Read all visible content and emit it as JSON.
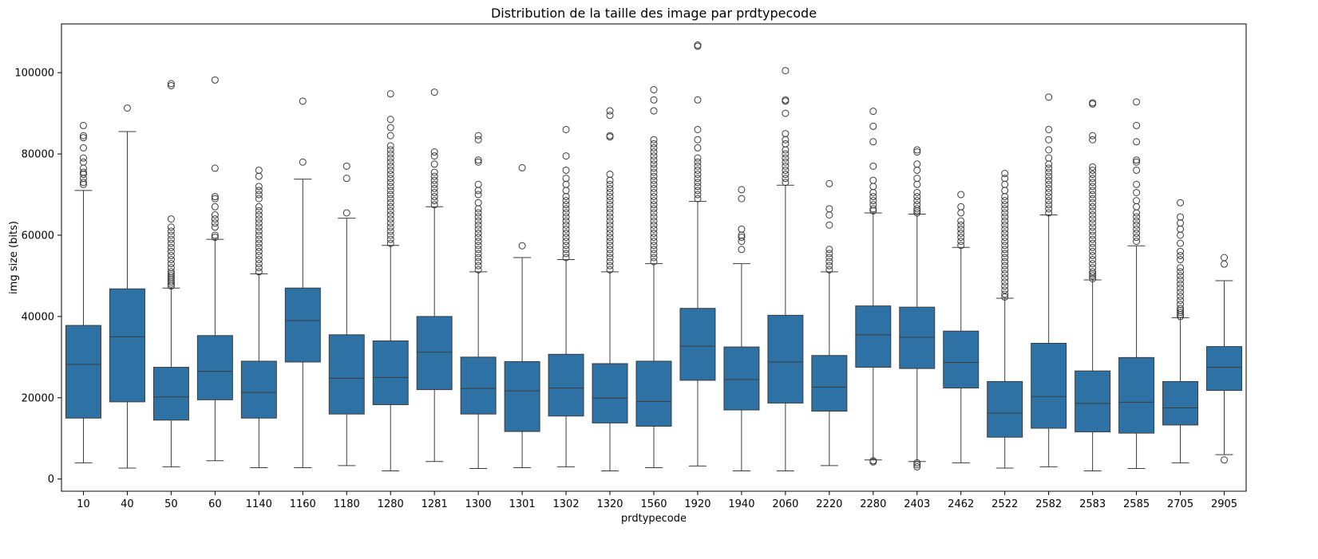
{
  "chart_data": {
    "type": "box",
    "title": "Distribution de la taille des image par prdtypecode",
    "xlabel": "prdtypecode",
    "ylabel": "img size (bits)",
    "ylim": [
      -3000,
      112000
    ],
    "yticks": [
      0,
      20000,
      40000,
      60000,
      80000,
      100000
    ],
    "ytick_labels": [
      "0",
      "20000",
      "40000",
      "60000",
      "80000",
      "100000"
    ],
    "grid": false,
    "box_color": "#2e72a5",
    "line_color": "#3b3b3b",
    "categories": [
      "10",
      "40",
      "50",
      "60",
      "1140",
      "1160",
      "1180",
      "1280",
      "1281",
      "1300",
      "1301",
      "1302",
      "1320",
      "1560",
      "1920",
      "1940",
      "2060",
      "2220",
      "2280",
      "2403",
      "2462",
      "2522",
      "2582",
      "2583",
      "2585",
      "2705",
      "2905"
    ],
    "boxes": [
      {
        "category": "10",
        "whislo": 4000,
        "q1": 15000,
        "median": 28200,
        "q3": 37800,
        "whishi": 71000,
        "fliers": [
          72500,
          73000,
          74000,
          75000,
          75500,
          76500,
          78000,
          79000,
          81500,
          84000,
          84500,
          87000
        ]
      },
      {
        "category": "40",
        "whislo": 2700,
        "q1": 19000,
        "median": 35000,
        "q3": 46800,
        "whishi": 85500,
        "fliers": [
          91300
        ]
      },
      {
        "category": "50",
        "whislo": 3000,
        "q1": 14500,
        "median": 20200,
        "q3": 27500,
        "whishi": 47000,
        "fliers": [
          47500,
          48000,
          48500,
          49000,
          49500,
          50000,
          50500,
          51000,
          52000,
          53000,
          54000,
          55000,
          56000,
          57000,
          58000,
          59000,
          60000,
          61000,
          62000,
          64000,
          96800,
          97300
        ]
      },
      {
        "category": "60",
        "whislo": 4500,
        "q1": 19500,
        "median": 26500,
        "q3": 35300,
        "whishi": 59000,
        "fliers": [
          59500,
          60000,
          62000,
          63000,
          64000,
          65000,
          67000,
          69000,
          69500,
          76500,
          98200
        ]
      },
      {
        "category": "1140",
        "whislo": 2800,
        "q1": 15000,
        "median": 21300,
        "q3": 29000,
        "whishi": 50500,
        "fliers": [
          51000,
          52000,
          53000,
          54000,
          55000,
          56000,
          57000,
          58000,
          59000,
          60000,
          61000,
          62000,
          63000,
          64000,
          65000,
          66000,
          67000,
          69000,
          70000,
          71000,
          72000,
          74500,
          76000
        ]
      },
      {
        "category": "1160",
        "whislo": 2800,
        "q1": 28800,
        "median": 39000,
        "q3": 47000,
        "whishi": 73800,
        "fliers": [
          78000,
          93000
        ]
      },
      {
        "category": "1180",
        "whislo": 3300,
        "q1": 16000,
        "median": 24800,
        "q3": 35500,
        "whishi": 64200,
        "fliers": [
          65500,
          74000,
          77000
        ]
      },
      {
        "category": "1280",
        "whislo": 2000,
        "q1": 18300,
        "median": 25000,
        "q3": 34000,
        "whishi": 57500,
        "fliers": [
          58000,
          59000,
          60000,
          61000,
          62000,
          63000,
          64000,
          65000,
          66000,
          67000,
          68000,
          69000,
          70000,
          71000,
          72000,
          73000,
          74000,
          75000,
          76000,
          77000,
          78000,
          79000,
          80000,
          81000,
          82000,
          84500,
          86500,
          88500,
          94800
        ]
      },
      {
        "category": "1281",
        "whislo": 4300,
        "q1": 22000,
        "median": 31200,
        "q3": 40000,
        "whishi": 67000,
        "fliers": [
          67500,
          68500,
          69500,
          70500,
          71500,
          72500,
          73500,
          74500,
          75500,
          77500,
          79500,
          80500,
          95200
        ]
      },
      {
        "category": "1300",
        "whislo": 2600,
        "q1": 16000,
        "median": 22300,
        "q3": 30000,
        "whishi": 51000,
        "fliers": [
          51500,
          52500,
          53500,
          54500,
          55500,
          56500,
          57500,
          58500,
          59500,
          60500,
          61500,
          62500,
          63500,
          64500,
          65500,
          66500,
          68000,
          70000,
          71000,
          72500,
          78000,
          78500,
          83500,
          84500
        ]
      },
      {
        "category": "1301",
        "whislo": 2800,
        "q1": 11700,
        "median": 21700,
        "q3": 28900,
        "whishi": 54500,
        "fliers": [
          57400,
          76600
        ]
      },
      {
        "category": "1302",
        "whislo": 3000,
        "q1": 15500,
        "median": 22400,
        "q3": 30700,
        "whishi": 54000,
        "fliers": [
          54500,
          55500,
          56500,
          57500,
          58500,
          59500,
          60500,
          61500,
          62500,
          63500,
          64500,
          65500,
          66500,
          67500,
          68500,
          69500,
          71000,
          72500,
          74000,
          76000,
          79500,
          86000
        ]
      },
      {
        "category": "1320",
        "whislo": 2000,
        "q1": 13800,
        "median": 19900,
        "q3": 28400,
        "whishi": 51000,
        "fliers": [
          51500,
          52500,
          53500,
          54500,
          55500,
          56500,
          57500,
          58500,
          59500,
          60500,
          61500,
          62500,
          63500,
          64500,
          65500,
          66500,
          67500,
          68500,
          69500,
          70500,
          71500,
          72500,
          73500,
          75000,
          84200,
          84500,
          89500,
          90600
        ]
      },
      {
        "category": "1560",
        "whislo": 2800,
        "q1": 13000,
        "median": 19100,
        "q3": 29000,
        "whishi": 53000,
        "fliers": [
          53500,
          54500,
          55500,
          56500,
          57500,
          58500,
          59500,
          60500,
          61500,
          62500,
          63500,
          64500,
          65500,
          66500,
          67500,
          68500,
          69500,
          70500,
          71500,
          72500,
          73500,
          74500,
          75500,
          76500,
          77500,
          78500,
          79500,
          80500,
          81500,
          82500,
          83500,
          90600,
          93300,
          95800
        ]
      },
      {
        "category": "1920",
        "whislo": 3200,
        "q1": 24300,
        "median": 32700,
        "q3": 42000,
        "whishi": 68300,
        "fliers": [
          69000,
          70000,
          71000,
          72000,
          73000,
          74000,
          75000,
          76000,
          77000,
          78000,
          79000,
          81500,
          83500,
          86000,
          93300,
          106500,
          106800
        ]
      },
      {
        "category": "1940",
        "whislo": 2000,
        "q1": 17000,
        "median": 24500,
        "q3": 32500,
        "whishi": 53000,
        "fliers": [
          56500,
          58500,
          59500,
          60000,
          61500,
          69000,
          71200
        ]
      },
      {
        "category": "2060",
        "whislo": 2000,
        "q1": 18700,
        "median": 28800,
        "q3": 40300,
        "whishi": 72300,
        "fliers": [
          73000,
          74000,
          75000,
          76000,
          77000,
          78000,
          79000,
          80000,
          81000,
          82500,
          83500,
          85000,
          90000,
          93000,
          93300,
          100500
        ]
      },
      {
        "category": "2220",
        "whislo": 3300,
        "q1": 16700,
        "median": 22600,
        "q3": 30400,
        "whishi": 51000,
        "fliers": [
          51500,
          52500,
          53500,
          54500,
          55500,
          56500,
          62500,
          65000,
          66500,
          72700
        ]
      },
      {
        "category": "2280",
        "whislo": 4700,
        "q1": 27500,
        "median": 35500,
        "q3": 42600,
        "whishi": 65500,
        "fliers": [
          4200,
          4500,
          66000,
          66500,
          67500,
          68500,
          69500,
          70500,
          72000,
          73500,
          77000,
          83000,
          86800,
          90500
        ]
      },
      {
        "category": "2403",
        "whislo": 4300,
        "q1": 27200,
        "median": 34900,
        "q3": 42300,
        "whishi": 65200,
        "fliers": [
          3000,
          3500,
          4000,
          65500,
          66000,
          66500,
          67500,
          68500,
          69500,
          70500,
          72500,
          74000,
          76000,
          77500,
          80500,
          81000
        ]
      },
      {
        "category": "2462",
        "whislo": 4000,
        "q1": 22400,
        "median": 28700,
        "q3": 36400,
        "whishi": 57000,
        "fliers": [
          57500,
          58500,
          59500,
          60500,
          61500,
          62500,
          63500,
          65500,
          67000,
          70000
        ]
      },
      {
        "category": "2522",
        "whislo": 2700,
        "q1": 10300,
        "median": 16200,
        "q3": 24000,
        "whishi": 44500,
        "fliers": [
          44800,
          45500,
          46500,
          47500,
          48500,
          49500,
          50500,
          51500,
          52500,
          53500,
          54500,
          55500,
          56500,
          57500,
          58500,
          59500,
          60500,
          61500,
          62500,
          63500,
          64500,
          65500,
          66500,
          67500,
          68500,
          69500,
          71000,
          72500,
          74000,
          75200
        ]
      },
      {
        "category": "2582",
        "whislo": 3000,
        "q1": 12500,
        "median": 20300,
        "q3": 33400,
        "whishi": 65000,
        "fliers": [
          65500,
          66500,
          67500,
          68500,
          69500,
          70500,
          71500,
          72500,
          73500,
          74500,
          75500,
          76500,
          77500,
          79000,
          81000,
          83500,
          86000,
          94000
        ]
      },
      {
        "category": "2583",
        "whislo": 2000,
        "q1": 11600,
        "median": 18600,
        "q3": 26600,
        "whishi": 49000,
        "fliers": [
          49300,
          50000,
          50500,
          51000,
          52000,
          53000,
          54000,
          55000,
          56000,
          57000,
          58000,
          59000,
          60000,
          61000,
          62000,
          63000,
          64000,
          65000,
          66000,
          67000,
          68000,
          69000,
          70000,
          71000,
          72000,
          73000,
          74000,
          75000,
          76000,
          76800,
          83500,
          84500,
          92300,
          92600
        ]
      },
      {
        "category": "2585",
        "whislo": 2600,
        "q1": 11300,
        "median": 18900,
        "q3": 29900,
        "whishi": 57400,
        "fliers": [
          58500,
          59500,
          60500,
          61500,
          62500,
          63500,
          64500,
          65500,
          67000,
          68500,
          70500,
          72500,
          76000,
          78000,
          78500,
          83000,
          87000,
          92800
        ]
      },
      {
        "category": "2705",
        "whislo": 4000,
        "q1": 13300,
        "median": 17500,
        "q3": 24000,
        "whishi": 39700,
        "fliers": [
          40000,
          40500,
          41000,
          41500,
          42000,
          43000,
          44000,
          45000,
          46000,
          47000,
          48000,
          49000,
          50000,
          51000,
          52000,
          54000,
          55000,
          56000,
          58000,
          60000,
          61500,
          63000,
          64500,
          68000
        ]
      },
      {
        "category": "2905",
        "whislo": 6000,
        "q1": 21800,
        "median": 27500,
        "q3": 32600,
        "whishi": 48800,
        "fliers": [
          4700,
          52900,
          54500
        ]
      }
    ]
  }
}
